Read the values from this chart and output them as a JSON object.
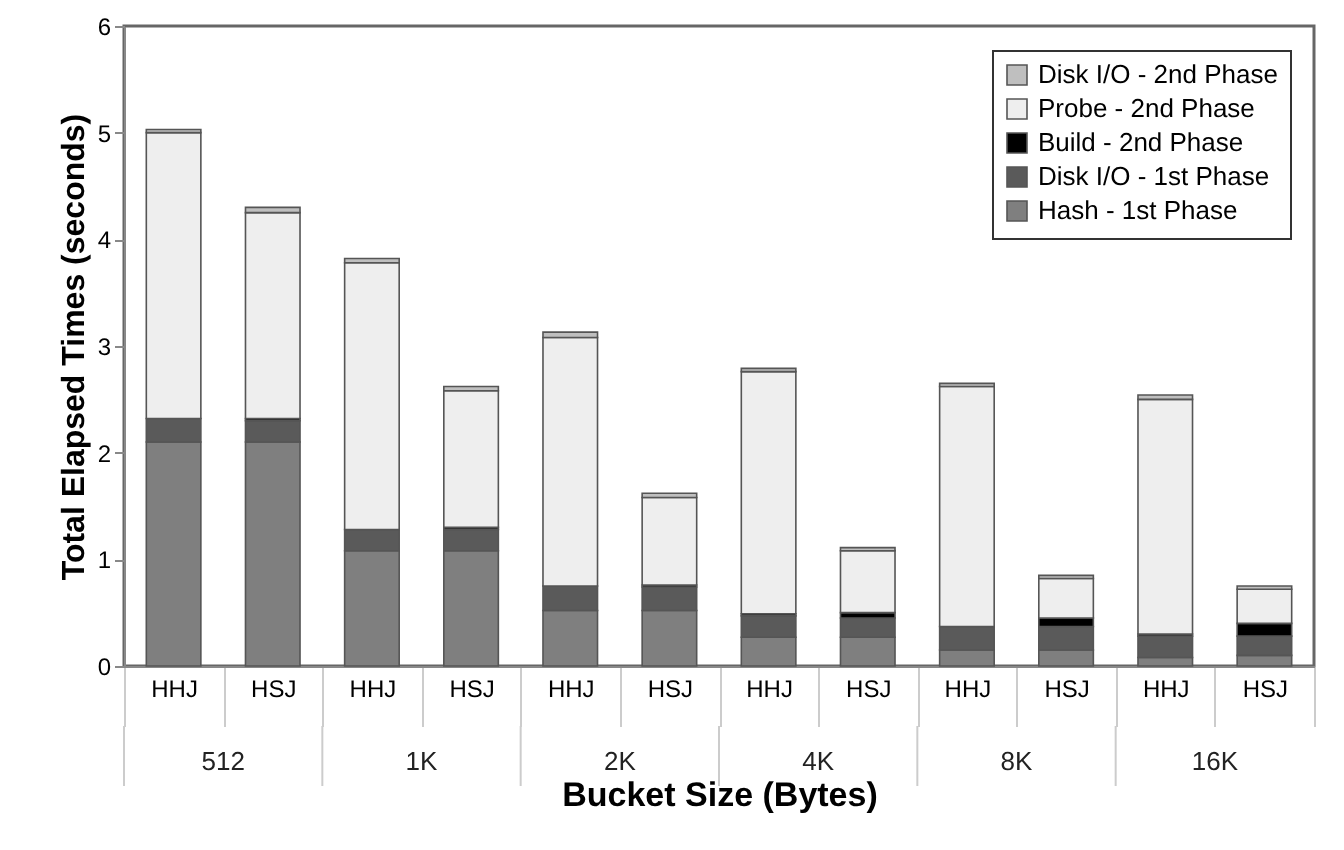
{
  "chart_data": {
    "type": "bar",
    "stacked": true,
    "xlabel": "Bucket Size (Bytes)",
    "ylabel": "Total Elapsed Times (seconds)",
    "categories": [
      "HHJ",
      "HSJ",
      "HHJ",
      "HSJ",
      "HHJ",
      "HSJ",
      "HHJ",
      "HSJ",
      "HHJ",
      "HSJ",
      "HHJ",
      "HSJ"
    ],
    "annotations": [
      "512",
      "1K",
      "2K",
      "4K",
      "8K",
      "16K"
    ],
    "ylim": [
      0,
      6
    ],
    "yticks": [
      0,
      1,
      2,
      3,
      4,
      5,
      6
    ],
    "legend": "top right",
    "grid": false,
    "series": [
      {
        "name": "Hash - 1st Phase",
        "color": "#7f7f7f",
        "values": [
          2.1,
          2.1,
          1.08,
          1.08,
          0.52,
          0.52,
          0.27,
          0.27,
          0.15,
          0.15,
          0.08,
          0.1
        ]
      },
      {
        "name": "Disk I/O - 1st Phase",
        "color": "#5a5a5a",
        "values": [
          0.22,
          0.2,
          0.2,
          0.2,
          0.23,
          0.22,
          0.2,
          0.18,
          0.22,
          0.22,
          0.2,
          0.18
        ]
      },
      {
        "name": "Build - 2nd Phase",
        "color": "#000000",
        "values": [
          0,
          0.02,
          0,
          0.02,
          0,
          0.02,
          0.02,
          0.05,
          0,
          0.08,
          0.02,
          0.12
        ]
      },
      {
        "name": "Probe - 2nd Phase",
        "color": "#eeeeee",
        "values": [
          2.68,
          1.93,
          2.5,
          1.28,
          2.33,
          0.82,
          2.27,
          0.58,
          2.25,
          0.37,
          2.2,
          0.32
        ]
      },
      {
        "name": "Disk I/O - 2nd Phase",
        "color": "#bfbfbf",
        "values": [
          0.03,
          0.05,
          0.04,
          0.04,
          0.05,
          0.04,
          0.03,
          0.03,
          0.03,
          0.03,
          0.04,
          0.03
        ]
      }
    ]
  }
}
